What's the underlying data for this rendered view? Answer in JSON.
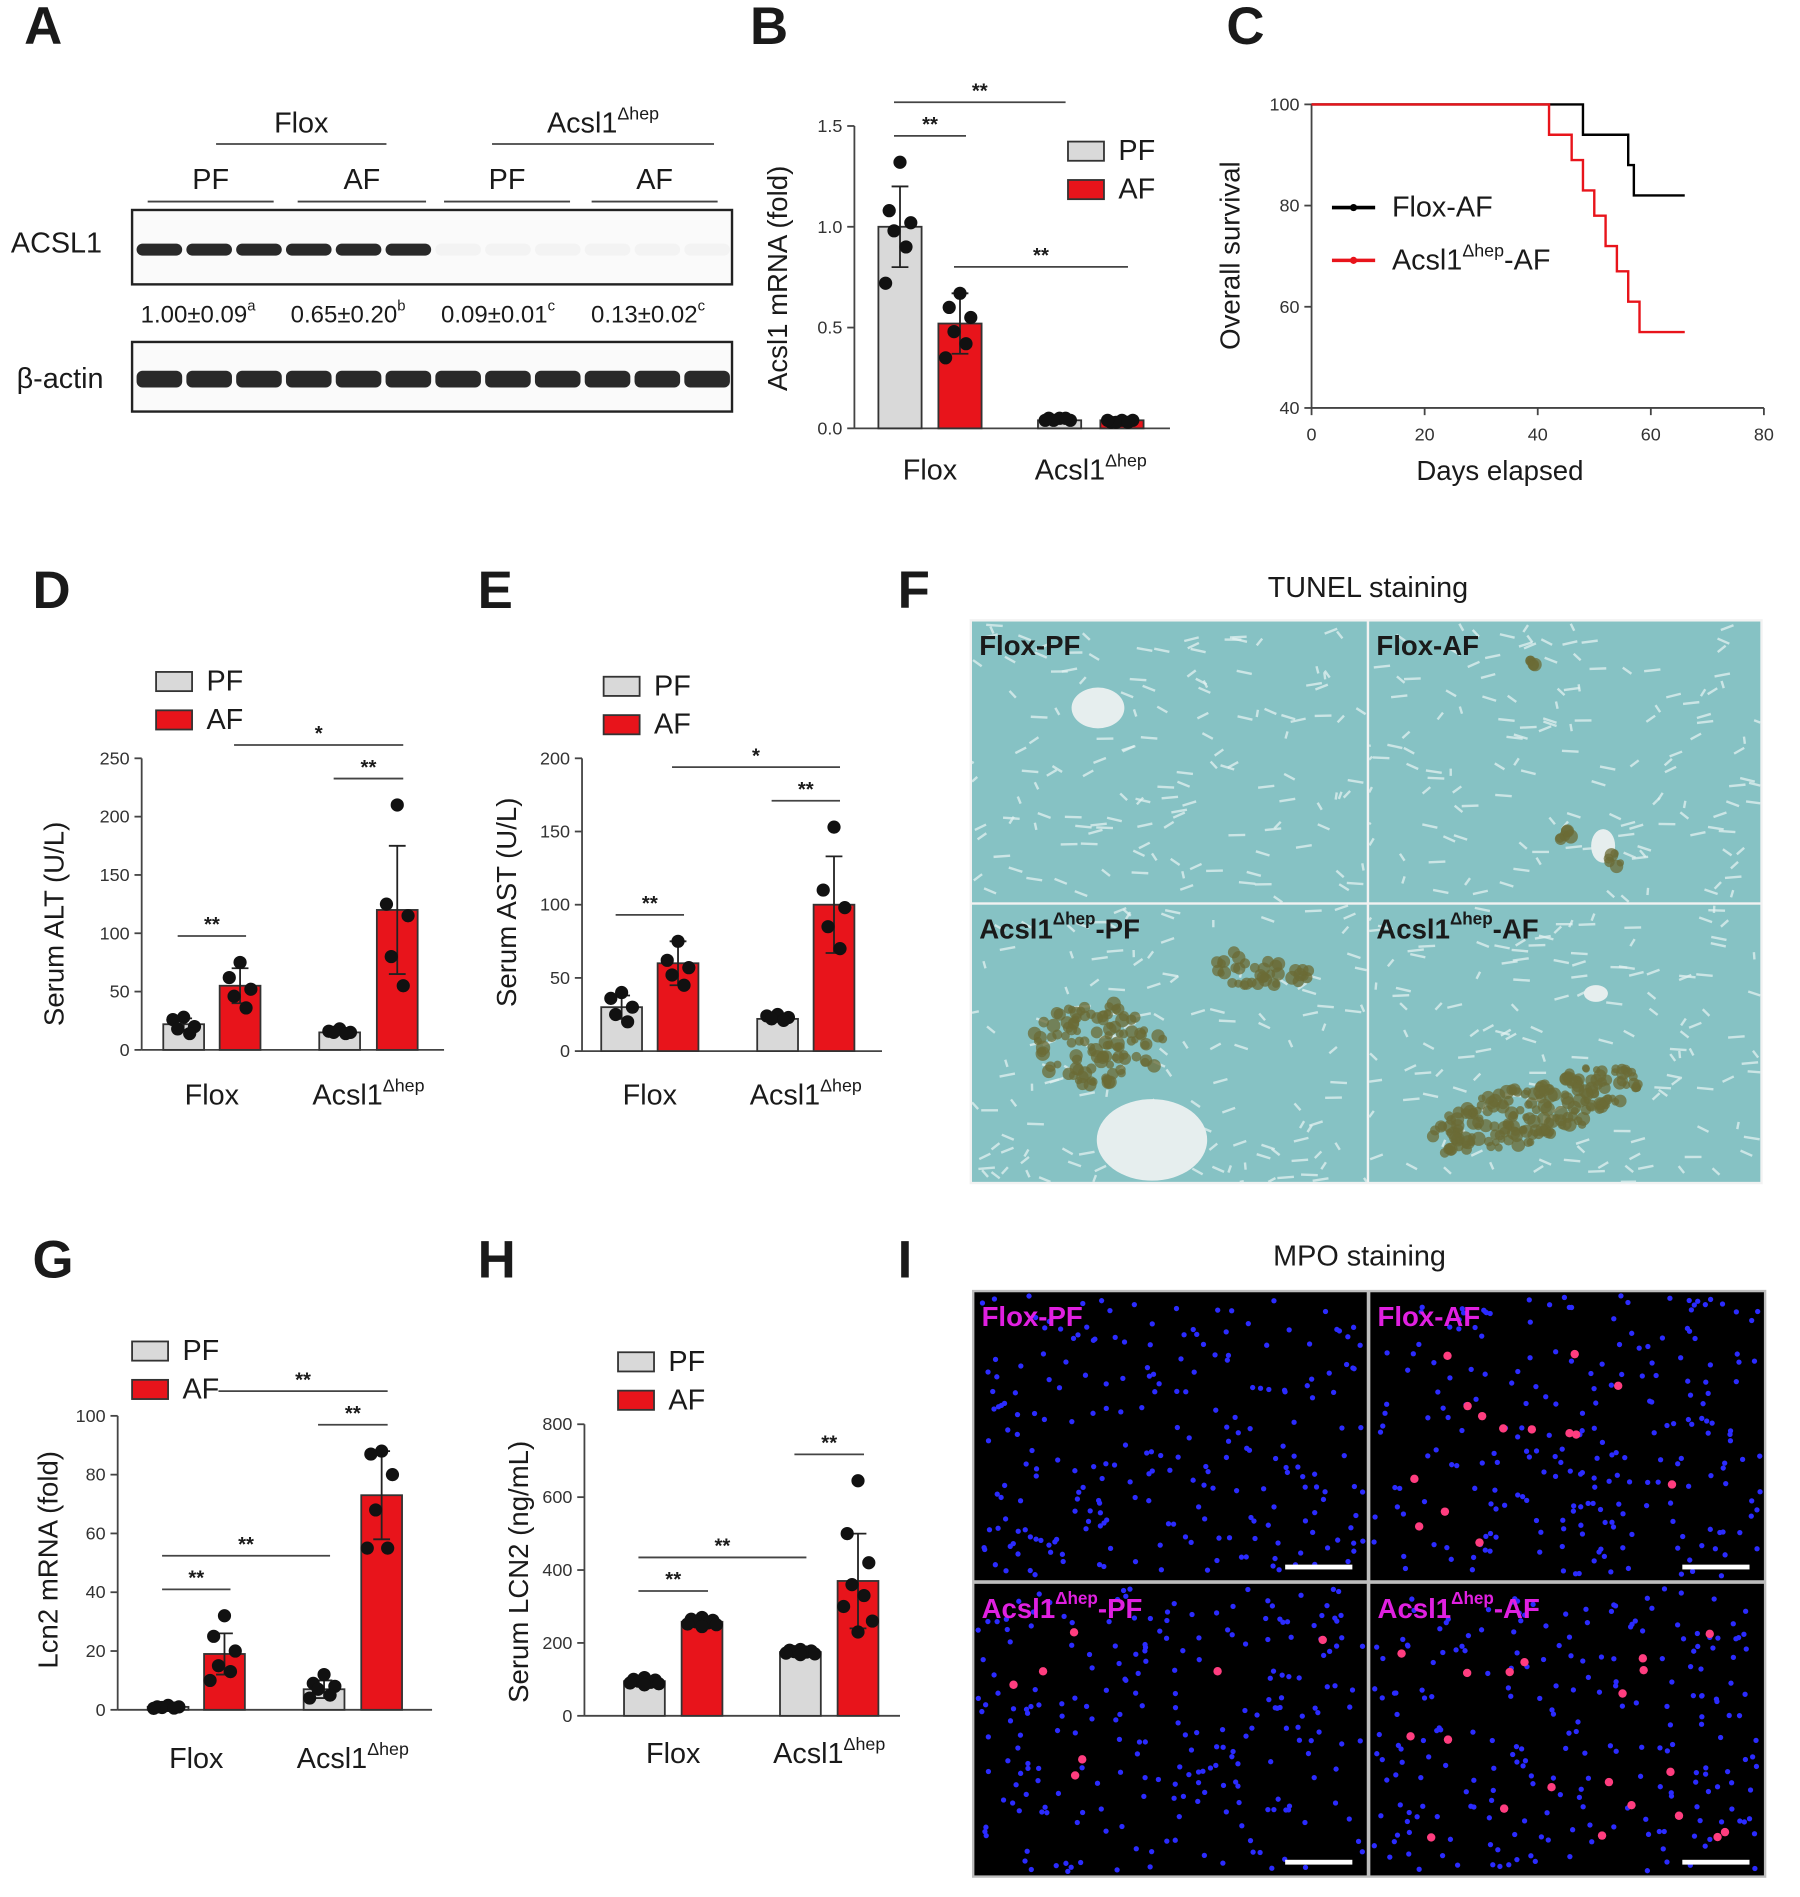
{
  "panel_labels": [
    "A",
    "B",
    "C",
    "D",
    "E",
    "F",
    "G",
    "H",
    "I"
  ],
  "blot": {
    "groups": [
      "Flox",
      [
        "Acsl1",
        "Δhep"
      ]
    ],
    "treatments": [
      "PF",
      "AF",
      "PF",
      "AF"
    ],
    "rows": [
      "ACSL1",
      "β-actin"
    ],
    "quantification": [
      [
        "1.00±0.09",
        "a"
      ],
      [
        "0.65±0.20",
        "b"
      ],
      [
        "0.09±0.01",
        "c"
      ],
      [
        "0.13±0.02",
        "c"
      ]
    ]
  },
  "chart_data": [
    {
      "type": "bar",
      "ylabel": "Acsl1 mRNA (fold)",
      "categories": [
        "Flox",
        [
          "Acsl1",
          "Δhep"
        ]
      ],
      "ylim": [
        0,
        1.5
      ],
      "yticks": [
        {
          "value": 0,
          "label": "0.0"
        },
        {
          "value": 0.5,
          "label": "0.5"
        },
        {
          "value": 1,
          "label": "1.0"
        },
        {
          "value": 1.5,
          "label": "1.5"
        }
      ],
      "series": [
        {
          "name": "PF",
          "color": "#d9d9d9",
          "values": [
            1.0,
            0.04
          ],
          "errors": [
            0.2,
            0.01
          ],
          "points": [
            [
              1.32,
              1.08,
              1.02,
              0.98,
              0.9,
              0.72
            ],
            [
              0.05,
              0.05,
              0.04,
              0.04,
              0.05,
              0.04
            ]
          ]
        },
        {
          "name": "AF",
          "color": "#e8141b",
          "values": [
            0.52,
            0.04
          ],
          "errors": [
            0.15,
            0.01
          ],
          "points": [
            [
              0.67,
              0.6,
              0.55,
              0.48,
              0.42,
              0.35
            ],
            [
              0.04,
              0.03,
              0.04,
              0.03,
              0.03,
              0.04
            ]
          ]
        }
      ],
      "comparisons": [
        {
          "label": "**",
          "between": [
            [
              0,
              0
            ],
            [
              0,
              1
            ]
          ]
        },
        {
          "label": "**",
          "between": [
            [
              0,
              1
            ],
            [
              1,
              1
            ]
          ]
        },
        {
          "label": "**",
          "between": [
            [
              0,
              0
            ],
            [
              1,
              0
            ]
          ]
        }
      ]
    },
    {
      "type": "line",
      "ylabel": "Overall survival",
      "xlabel": "Days elapsed",
      "xlim": [
        0,
        80
      ],
      "xticks": [
        0,
        20,
        40,
        60,
        80
      ],
      "ylim": [
        40,
        100
      ],
      "yticks": [
        40,
        60,
        80,
        100
      ],
      "series": [
        {
          "name": "Flox-AF",
          "color": "#000000",
          "x": [
            0,
            48,
            48,
            56,
            56,
            57,
            57,
            66
          ],
          "values": [
            100,
            100,
            94,
            94,
            88,
            88,
            82,
            82
          ]
        },
        {
          "name": [
            "Acsl1",
            "Δhep",
            "-AF"
          ],
          "color": "#e8141b",
          "x": [
            0,
            42,
            42,
            46,
            46,
            48,
            48,
            50,
            50,
            52,
            52,
            54,
            54,
            56,
            56,
            58,
            58,
            66
          ],
          "values": [
            100,
            100,
            94,
            94,
            89,
            89,
            83,
            83,
            78,
            78,
            72,
            72,
            67,
            67,
            61,
            61,
            55,
            55
          ]
        }
      ]
    },
    {
      "type": "bar",
      "ylabel": "Serum ALT (U/L)",
      "categories": [
        "Flox",
        [
          "Acsl1",
          "Δhep"
        ]
      ],
      "ylim": [
        0,
        250
      ],
      "yticks": [
        0,
        50,
        100,
        150,
        200,
        250
      ],
      "series": [
        {
          "name": "PF",
          "color": "#d9d9d9",
          "values": [
            22,
            15
          ],
          "errors": [
            5,
            2
          ],
          "points": [
            [
              28,
              26,
              20,
              18,
              14
            ],
            [
              18,
              16,
              15,
              15,
              14
            ]
          ]
        },
        {
          "name": "AF",
          "color": "#e8141b",
          "values": [
            55,
            120
          ],
          "errors": [
            15,
            55
          ],
          "points": [
            [
              75,
              62,
              52,
              46,
              36
            ],
            [
              210,
              125,
              115,
              80,
              55
            ]
          ]
        }
      ],
      "comparisons": [
        {
          "label": "**",
          "between": [
            [
              0,
              0
            ],
            [
              0,
              1
            ]
          ]
        },
        {
          "label": "**",
          "between": [
            [
              1,
              0
            ],
            [
              1,
              1
            ]
          ]
        },
        {
          "label": "*",
          "between": [
            [
              0,
              1
            ],
            [
              1,
              1
            ]
          ]
        }
      ]
    },
    {
      "type": "bar",
      "ylabel": "Serum AST (U/L)",
      "categories": [
        "Flox",
        [
          "Acsl1",
          "Δhep"
        ]
      ],
      "ylim": [
        0,
        200
      ],
      "yticks": [
        0,
        50,
        100,
        150,
        200
      ],
      "series": [
        {
          "name": "PF",
          "color": "#d9d9d9",
          "values": [
            30,
            22
          ],
          "errors": [
            8,
            2
          ],
          "points": [
            [
              40,
              36,
              30,
              25,
              20
            ],
            [
              25,
              24,
              23,
              22,
              21
            ]
          ]
        },
        {
          "name": "AF",
          "color": "#e8141b",
          "values": [
            60,
            100
          ],
          "errors": [
            15,
            33
          ],
          "points": [
            [
              75,
              62,
              57,
              52,
              45
            ],
            [
              153,
              110,
              98,
              85,
              70
            ]
          ]
        }
      ],
      "comparisons": [
        {
          "label": "**",
          "between": [
            [
              0,
              0
            ],
            [
              0,
              1
            ]
          ]
        },
        {
          "label": "**",
          "between": [
            [
              1,
              0
            ],
            [
              1,
              1
            ]
          ]
        },
        {
          "label": "*",
          "between": [
            [
              0,
              1
            ],
            [
              1,
              1
            ]
          ]
        }
      ]
    },
    {
      "type": "bar",
      "ylabel": "Lcn2 mRNA (fold)",
      "categories": [
        "Flox",
        [
          "Acsl1",
          "Δhep"
        ]
      ],
      "ylim": [
        0,
        100
      ],
      "yticks": [
        0,
        20,
        40,
        60,
        80,
        100
      ],
      "series": [
        {
          "name": "PF",
          "color": "#d9d9d9",
          "values": [
            1,
            7
          ],
          "errors": [
            0.5,
            3
          ],
          "points": [
            [
              1.5,
              1,
              1,
              0.8,
              0.6,
              0.5
            ],
            [
              12,
              9,
              8,
              7,
              5,
              4
            ]
          ]
        },
        {
          "name": "AF",
          "color": "#e8141b",
          "values": [
            19,
            73
          ],
          "errors": [
            7,
            15
          ],
          "points": [
            [
              32,
              25,
              20,
              15,
              13,
              10
            ],
            [
              88,
              87,
              80,
              68,
              55,
              55
            ]
          ]
        }
      ],
      "comparisons": [
        {
          "label": "**",
          "between": [
            [
              0,
              0
            ],
            [
              0,
              1
            ]
          ]
        },
        {
          "label": "**",
          "between": [
            [
              1,
              0
            ],
            [
              1,
              1
            ]
          ]
        },
        {
          "label": "**",
          "between": [
            [
              0,
              0
            ],
            [
              1,
              0
            ]
          ]
        },
        {
          "label": "**",
          "between": [
            [
              0,
              1
            ],
            [
              1,
              1
            ]
          ]
        }
      ]
    },
    {
      "type": "bar",
      "ylabel": "Serum LCN2 (ng/mL)",
      "categories": [
        "Flox",
        [
          "Acsl1",
          "Δhep"
        ]
      ],
      "ylim": [
        0,
        800
      ],
      "yticks": [
        0,
        200,
        400,
        600,
        800
      ],
      "series": [
        {
          "name": "PF",
          "color": "#d9d9d9",
          "values": [
            95,
            175
          ],
          "errors": [
            10,
            6
          ],
          "points": [
            [
              105,
              100,
              98,
              95,
              92,
              90,
              88,
              85
            ],
            [
              182,
              180,
              178,
              176,
              175,
              172,
              170,
              168
            ]
          ]
        },
        {
          "name": "AF",
          "color": "#e8141b",
          "values": [
            258,
            370
          ],
          "errors": [
            10,
            130
          ],
          "points": [
            [
              270,
              265,
              262,
              258,
              255,
              252,
              250,
              245
            ],
            [
              645,
              500,
              420,
              360,
              330,
              300,
              260,
              230
            ]
          ]
        }
      ],
      "comparisons": [
        {
          "label": "**",
          "between": [
            [
              0,
              0
            ],
            [
              0,
              1
            ]
          ]
        },
        {
          "label": "**",
          "between": [
            [
              0,
              0
            ],
            [
              1,
              0
            ]
          ]
        },
        {
          "label": "**",
          "between": [
            [
              1,
              0
            ],
            [
              1,
              1
            ]
          ]
        }
      ]
    }
  ],
  "tunel": {
    "title": "TUNEL staining",
    "panels": [
      "Flox-PF",
      "Flox-AF",
      [
        "Acsl1",
        "Δhep",
        "-PF"
      ],
      [
        "Acsl1",
        "Δhep",
        "-AF"
      ]
    ]
  },
  "mpo": {
    "title": "MPO staining",
    "panels": [
      "Flox-PF",
      "Flox-AF",
      [
        "Acsl1",
        "Δhep",
        "-PF"
      ],
      [
        "Acsl1",
        "Δhep",
        "-AF"
      ]
    ]
  }
}
